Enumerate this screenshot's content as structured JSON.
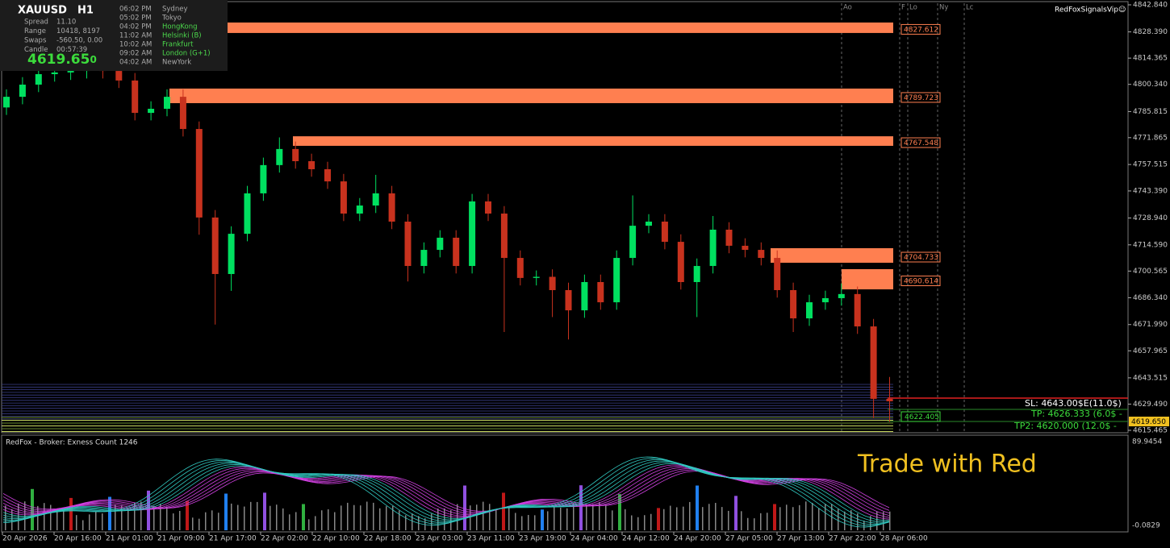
{
  "info_panel": {
    "symbol": "XAUUSD",
    "timeframe": "H1",
    "rows": [
      [
        "Spread",
        "11.10"
      ],
      [
        "Range",
        "10418, 8197"
      ],
      [
        "Swaps",
        "-560.50, 0.00"
      ],
      [
        "Candle",
        "00:57:39"
      ]
    ],
    "bid": "4619.65",
    "bid_tail": "0"
  },
  "sessions": [
    [
      "06:02 PM",
      "Sydney"
    ],
    [
      "05:02 PM",
      "Tokyo"
    ],
    [
      "04:02 PM",
      "HongKong"
    ],
    [
      "11:02 AM",
      "Helsinki  (B)"
    ],
    [
      "10:02 AM",
      "Frankfurt"
    ],
    [
      "09:02 AM",
      "London  (G+1)"
    ],
    [
      "04:02 AM",
      "NewYork"
    ]
  ],
  "brand": "RedFoxSignalsVip☺",
  "session_markers": [
    "Ao",
    "F",
    "Lo",
    "Ny",
    "Lc"
  ],
  "chart_data": {
    "type": "candlestick",
    "ylim": [
      4615.465,
      4842.84
    ],
    "yticks": [
      {
        "value": 4615.465,
        "label": "4615.465"
      },
      {
        "value": 4629.49,
        "label": "4629.490"
      },
      {
        "value": 4643.515,
        "label": "4643.515"
      },
      {
        "value": 4657.965,
        "label": "4657.965"
      },
      {
        "value": 4671.99,
        "label": "4671.990"
      },
      {
        "value": 4686.34,
        "label": "4686.340"
      },
      {
        "value": 4700.565,
        "label": "4700.565"
      },
      {
        "value": 4714.59,
        "label": "4714.590"
      },
      {
        "value": 4728.94,
        "label": "4728.940"
      },
      {
        "value": 4743.39,
        "label": "4743.390"
      },
      {
        "value": 4757.515,
        "label": "4757.515"
      },
      {
        "value": 4771.865,
        "label": "4771.865"
      },
      {
        "value": 4785.815,
        "label": "4785.815"
      },
      {
        "value": 4800.34,
        "label": "4800.340"
      },
      {
        "value": 4814.365,
        "label": "4814.365"
      },
      {
        "value": 4828.39,
        "label": "4828.390"
      },
      {
        "value": 4842.84,
        "label": "4842.840"
      }
    ],
    "x_labels": [
      "20 Apr 2026",
      "20 Apr 16:00",
      "21 Apr 01:00",
      "21 Apr 09:00",
      "21 Apr 17:00",
      "22 Apr 02:00",
      "22 Apr 10:00",
      "22 Apr 18:00",
      "23 Apr 03:00",
      "23 Apr 11:00",
      "23 Apr 19:00",
      "24 Apr 04:00",
      "24 Apr 12:00",
      "24 Apr 20:00",
      "27 Apr 05:00",
      "27 Apr 13:00",
      "27 Apr 22:00",
      "28 Apr 06:00"
    ],
    "candles": [
      [
        4788.0,
        4797.7,
        4784.0,
        4793.7
      ],
      [
        4793.7,
        4804.2,
        4789.7,
        4800.2
      ],
      [
        4800.2,
        4809.8,
        4796.2,
        4805.8
      ],
      [
        4805.8,
        4810.7,
        4801.8,
        4806.7
      ],
      [
        4806.7,
        4811.5,
        4802.7,
        4807.5
      ],
      [
        4807.5,
        4812.8,
        4803.5,
        4808.8
      ],
      [
        4808.8,
        4812.8,
        4803.5,
        4807.5
      ],
      [
        4807.5,
        4811.5,
        4798.4,
        4802.4
      ],
      [
        4802.4,
        4806.4,
        4781.1,
        4785.1
      ],
      [
        4785.1,
        4791.3,
        4781.1,
        4787.3
      ],
      [
        4787.3,
        4797.7,
        4783.3,
        4793.7
      ],
      [
        4793.7,
        4797.7,
        4772.5,
        4776.5
      ],
      [
        4776.5,
        4780.5,
        4720.0,
        4729.2
      ],
      [
        4729.2,
        4733.2,
        4672.0,
        4699.0
      ],
      [
        4699.0,
        4724.5,
        4690.0,
        4720.5
      ],
      [
        4720.5,
        4746.1,
        4716.5,
        4742.1
      ],
      [
        4742.1,
        4761.2,
        4738.1,
        4757.2
      ],
      [
        4757.2,
        4772.0,
        4753.2,
        4765.8
      ],
      [
        4765.8,
        4769.8,
        4755.3,
        4759.3
      ],
      [
        4759.3,
        4763.3,
        4751.0,
        4755.0
      ],
      [
        4755.0,
        4759.0,
        4744.5,
        4748.5
      ],
      [
        4748.5,
        4752.5,
        4727.3,
        4731.3
      ],
      [
        4731.3,
        4739.6,
        4727.3,
        4735.6
      ],
      [
        4735.6,
        4752.0,
        4731.6,
        4742.1
      ],
      [
        4742.1,
        4746.1,
        4723.0,
        4727.0
      ],
      [
        4727.0,
        4731.0,
        4695.0,
        4703.3
      ],
      [
        4703.3,
        4715.9,
        4699.3,
        4711.9
      ],
      [
        4711.9,
        4722.4,
        4707.9,
        4718.4
      ],
      [
        4718.4,
        4722.4,
        4699.3,
        4703.3
      ],
      [
        4703.3,
        4741.8,
        4699.3,
        4737.8
      ],
      [
        4737.8,
        4741.8,
        4727.3,
        4731.3
      ],
      [
        4731.3,
        4735.3,
        4668.0,
        4707.6
      ],
      [
        4707.6,
        4711.6,
        4692.9,
        4696.9
      ],
      [
        4696.9,
        4700.9,
        4692.9,
        4697.5
      ],
      [
        4697.5,
        4701.5,
        4676.0,
        4690.4
      ],
      [
        4690.4,
        4694.4,
        4664.0,
        4679.6
      ],
      [
        4679.6,
        4698.7,
        4675.6,
        4694.7
      ],
      [
        4694.7,
        4698.7,
        4679.9,
        4683.9
      ],
      [
        4683.9,
        4711.6,
        4679.9,
        4707.6
      ],
      [
        4707.6,
        4741.0,
        4703.6,
        4724.8
      ],
      [
        4724.8,
        4731.0,
        4720.8,
        4727.0
      ],
      [
        4727.0,
        4731.0,
        4712.2,
        4716.2
      ],
      [
        4716.2,
        4720.2,
        4690.7,
        4694.7
      ],
      [
        4694.7,
        4707.3,
        4676.0,
        4703.3
      ],
      [
        4703.3,
        4730.0,
        4699.3,
        4722.7
      ],
      [
        4722.7,
        4726.7,
        4710.1,
        4714.1
      ],
      [
        4714.1,
        4718.1,
        4707.9,
        4711.9
      ],
      [
        4711.9,
        4715.9,
        4703.6,
        4707.6
      ],
      [
        4707.6,
        4711.6,
        4686.4,
        4690.4
      ],
      [
        4690.4,
        4694.4,
        4668.0,
        4675.3
      ],
      [
        4675.3,
        4687.9,
        4671.3,
        4683.9
      ],
      [
        4683.9,
        4690.1,
        4679.9,
        4686.1
      ],
      [
        4686.1,
        4694.0,
        4682.1,
        4688.3
      ],
      [
        4688.3,
        4692.3,
        4667.0,
        4671.0
      ],
      [
        4671.0,
        4675.0,
        4622.0,
        4632.3
      ],
      [
        4632.3,
        4644.0,
        4620.0,
        4631.0
      ]
    ],
    "zones": [
      {
        "label": "4827.612",
        "top": 4833.4,
        "bottom": 4827.8
      },
      {
        "label": "4789.723",
        "top": 4798.1,
        "bottom": 4790.3
      },
      {
        "label": "4767.548",
        "top": 4772.6,
        "bottom": 4767.5
      },
      {
        "label": "4704.733",
        "top": 4712.8,
        "bottom": 4705.0
      },
      {
        "label": "4690.614",
        "top": 4701.6,
        "bottom": 4690.8
      }
    ]
  },
  "trade": {
    "sl": "SL: 4643.00$E(11.0$)",
    "tp": "TP: 4626.333 (6.0$ -",
    "tp2": "TP2: 4620.000 (12.0$ -",
    "entry": "4622.405",
    "price": "4619.650"
  },
  "indicator": {
    "header": "RedFox -  Broker: Exness     Count  1246",
    "top_value": "89.9454",
    "bottom_value": "-0.0829",
    "banner": "Trade with Red"
  }
}
